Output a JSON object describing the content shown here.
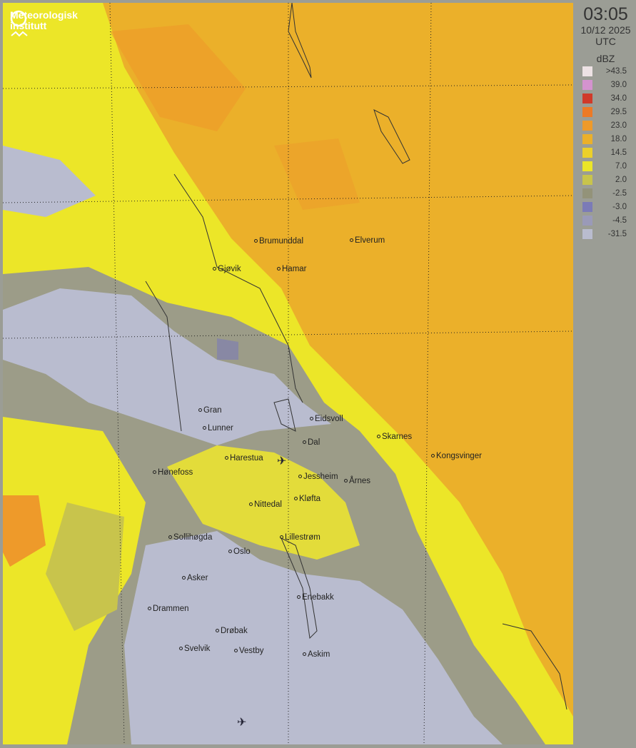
{
  "logo": {
    "line1": "Meteorologisk",
    "line2": "institutt"
  },
  "panel": {
    "time": "03:05",
    "date": "10/12 2025",
    "tz": "UTC",
    "unit": "dBZ"
  },
  "legend": [
    {
      "label": ">43.5",
      "color": "#ede2e4"
    },
    {
      "label": "39.0",
      "color": "#d493cf"
    },
    {
      "label": "34.0",
      "color": "#d03a2a"
    },
    {
      "label": "29.5",
      "color": "#ec7a26"
    },
    {
      "label": "23.0",
      "color": "#ee9a2a"
    },
    {
      "label": "18.0",
      "color": "#ebb02a"
    },
    {
      "label": "14.5",
      "color": "#ecd02a"
    },
    {
      "label": "7.0",
      "color": "#ece628"
    },
    {
      "label": "2.0",
      "color": "#c8c44c"
    },
    {
      "label": "-2.5",
      "color": "#939379"
    },
    {
      "label": "-3.0",
      "color": "#7b7bb7"
    },
    {
      "label": "-4.5",
      "color": "#9a9ab8"
    },
    {
      "label": "-31.5",
      "color": "#b9bccf"
    }
  ],
  "cities": [
    "Brumunddal",
    "Elverum",
    "Gjøvik",
    "Hamar",
    "Gran",
    "Eidsvoll",
    "Lunner",
    "Skarnes",
    "Dal",
    "Kongsvinger",
    "Harestua",
    "Hønefoss",
    "Jessheim",
    "Årnes",
    "Kløfta",
    "Nittedal",
    "Sollihøgda",
    "Lillestrøm",
    "Oslo",
    "Asker",
    "Enebakk",
    "Drammen",
    "Drøbak",
    "Svelvik",
    "Vestby",
    "Askim"
  ],
  "icons": {
    "airport": "airplane-icon"
  }
}
